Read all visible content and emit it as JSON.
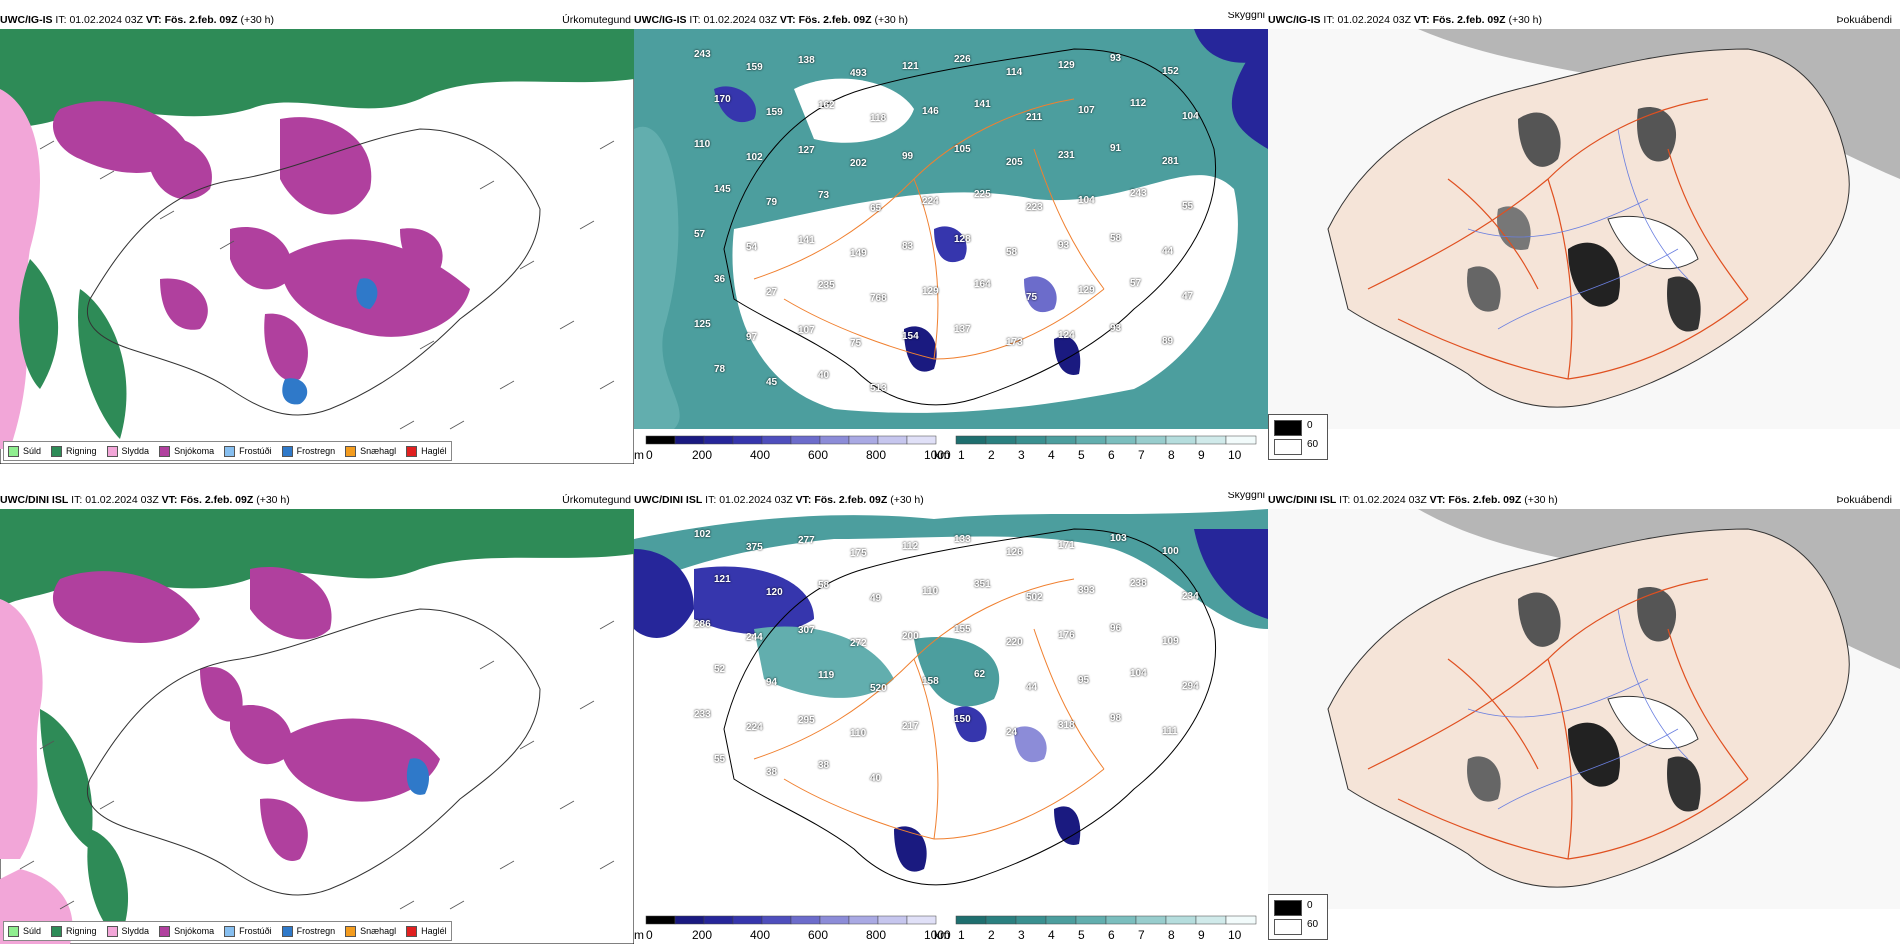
{
  "panels": [
    {
      "id": "p1",
      "model": "UWC/IG-IS",
      "it_label": "IT:",
      "it": "01.02.2024 03Z",
      "vt_label": "VT:",
      "vt": "Fös. 2.feb. 09Z",
      "lead": "(+30 h)",
      "field": "Úrkomutegund"
    },
    {
      "id": "p2",
      "model": "UWC/IG-IS",
      "it_label": "IT:",
      "it": "01.02.2024 03Z",
      "vt_label": "VT:",
      "vt": "Fös. 2.feb. 09Z",
      "lead": "(+30 h)",
      "field": "Skyggni"
    },
    {
      "id": "p3",
      "model": "UWC/IG-IS",
      "it_label": "IT:",
      "it": "01.02.2024 03Z",
      "vt_label": "VT:",
      "vt": "Fös. 2.feb. 09Z",
      "lead": "(+30 h)",
      "field": "Þokuábendi"
    },
    {
      "id": "p4",
      "model": "UWC/DINI ISL",
      "it_label": "IT:",
      "it": "01.02.2024 03Z",
      "vt_label": "VT:",
      "vt": "Fös. 2.feb. 09Z",
      "lead": "(+30 h)",
      "field": "Úrkomutegund"
    },
    {
      "id": "p5",
      "model": "UWC/DINI ISL",
      "it_label": "IT:",
      "it": "01.02.2024 03Z",
      "vt_label": "VT:",
      "vt": "Fös. 2.feb. 09Z",
      "lead": "(+30 h)",
      "field": "Skyggni"
    },
    {
      "id": "p6",
      "model": "UWC/DINI ISL",
      "it_label": "IT:",
      "it": "01.02.2024 03Z",
      "vt_label": "VT:",
      "vt": "Fös. 2.feb. 09Z",
      "lead": "(+30 h)",
      "field": "Þokuábendi"
    }
  ],
  "precip_legend": [
    {
      "label": "Súld",
      "color": "#90ee90"
    },
    {
      "label": "Rigning",
      "color": "#2e8b57"
    },
    {
      "label": "Slydda",
      "color": "#f2a6d8"
    },
    {
      "label": "Snjókoma",
      "color": "#b0409e"
    },
    {
      "label": "Frostúði",
      "color": "#87bff0"
    },
    {
      "label": "Frostregn",
      "color": "#2f79c9"
    },
    {
      "label": "Snæhagl",
      "color": "#f39c1f"
    },
    {
      "label": "Haglél",
      "color": "#e02020"
    }
  ],
  "visibility_scale": {
    "m_unit": "m",
    "m_ticks": [
      "0",
      "200",
      "400",
      "600",
      "800",
      "1000"
    ],
    "km_unit": "km",
    "km_ticks": [
      "1",
      "2",
      "3",
      "4",
      "5",
      "6",
      "7",
      "8",
      "9",
      "10"
    ],
    "m_colors": [
      "#000000",
      "#1a1a80",
      "#26269a",
      "#3636ad",
      "#4f4fbd",
      "#6c6ccb",
      "#8c8cd8",
      "#a9a9e3",
      "#c6c6ee",
      "#e0e0f7"
    ],
    "km_colors": [
      "#1f6f6f",
      "#2b8080",
      "#3a9090",
      "#4c9e9e",
      "#62aeae",
      "#7bbebe",
      "#98cdcd",
      "#b5dddd",
      "#d0eaea",
      "#f2fbfb"
    ]
  },
  "fog_legend": {
    "low": "0",
    "high": "60"
  },
  "vis_labels_top": [
    "243",
    "159",
    "138",
    "493",
    "121",
    "226",
    "114",
    "129",
    "93",
    "152",
    "170",
    "159",
    "162",
    "118",
    "146",
    "141",
    "211",
    "107",
    "112",
    "104",
    "110",
    "102",
    "127",
    "202",
    "99",
    "105",
    "205",
    "231",
    "91",
    "281",
    "145",
    "79",
    "73",
    "65",
    "224",
    "225",
    "223",
    "104",
    "243",
    "55",
    "57",
    "54",
    "141",
    "149",
    "83",
    "128",
    "58",
    "93",
    "58",
    "44",
    "36",
    "27",
    "235",
    "768",
    "129",
    "164",
    "75",
    "129",
    "57",
    "47",
    "125",
    "97",
    "107",
    "75",
    "154",
    "137",
    "173",
    "124",
    "93",
    "89",
    "78",
    "45",
    "40",
    "513"
  ],
  "vis_labels_bottom": [
    "102",
    "375",
    "277",
    "175",
    "112",
    "133",
    "126",
    "171",
    "103",
    "100",
    "121",
    "120",
    "58",
    "49",
    "110",
    "351",
    "502",
    "393",
    "238",
    "234",
    "286",
    "244",
    "307",
    "272",
    "200",
    "155",
    "220",
    "176",
    "96",
    "109",
    "52",
    "94",
    "119",
    "520",
    "158",
    "62",
    "44",
    "95",
    "104",
    "294",
    "233",
    "224",
    "295",
    "110",
    "217",
    "150",
    "24",
    "318",
    "98",
    "111",
    "55",
    "38",
    "38",
    "40"
  ]
}
